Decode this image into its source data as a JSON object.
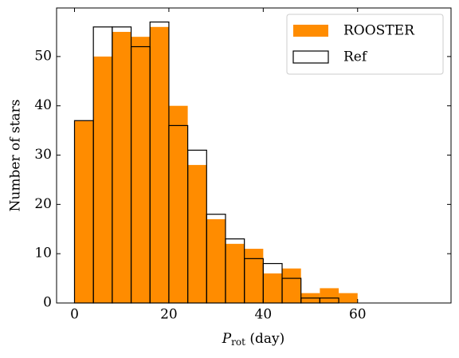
{
  "chart_data": {
    "type": "histogram",
    "xlabel": [
      "P",
      "rot",
      " (day)"
    ],
    "ylabel": "Number of stars",
    "bins": [
      0,
      4,
      8,
      12,
      16,
      20,
      24,
      28,
      32,
      36,
      40,
      44,
      48,
      52,
      56,
      60,
      64,
      68,
      72,
      76
    ],
    "series": [
      {
        "name": "ROOSTER",
        "color": "#ff8c00",
        "filled": true,
        "values": [
          37,
          50,
          55,
          54,
          56,
          40,
          28,
          17,
          12,
          11,
          6,
          7,
          2,
          3,
          2,
          0,
          0,
          0,
          0
        ]
      },
      {
        "name": "Ref",
        "color": "#000000",
        "filled": false,
        "values": [
          37,
          56,
          56,
          52,
          57,
          36,
          31,
          18,
          13,
          9,
          8,
          5,
          1,
          1,
          0,
          0,
          0,
          0,
          0
        ]
      }
    ],
    "xlim": [
      -3.8,
      79.8
    ],
    "xticks": [
      0,
      20,
      40,
      60
    ],
    "ylim": [
      0,
      59.85
    ],
    "yticks": [
      0,
      10,
      20,
      30,
      40,
      50
    ],
    "legend": "upper right"
  }
}
